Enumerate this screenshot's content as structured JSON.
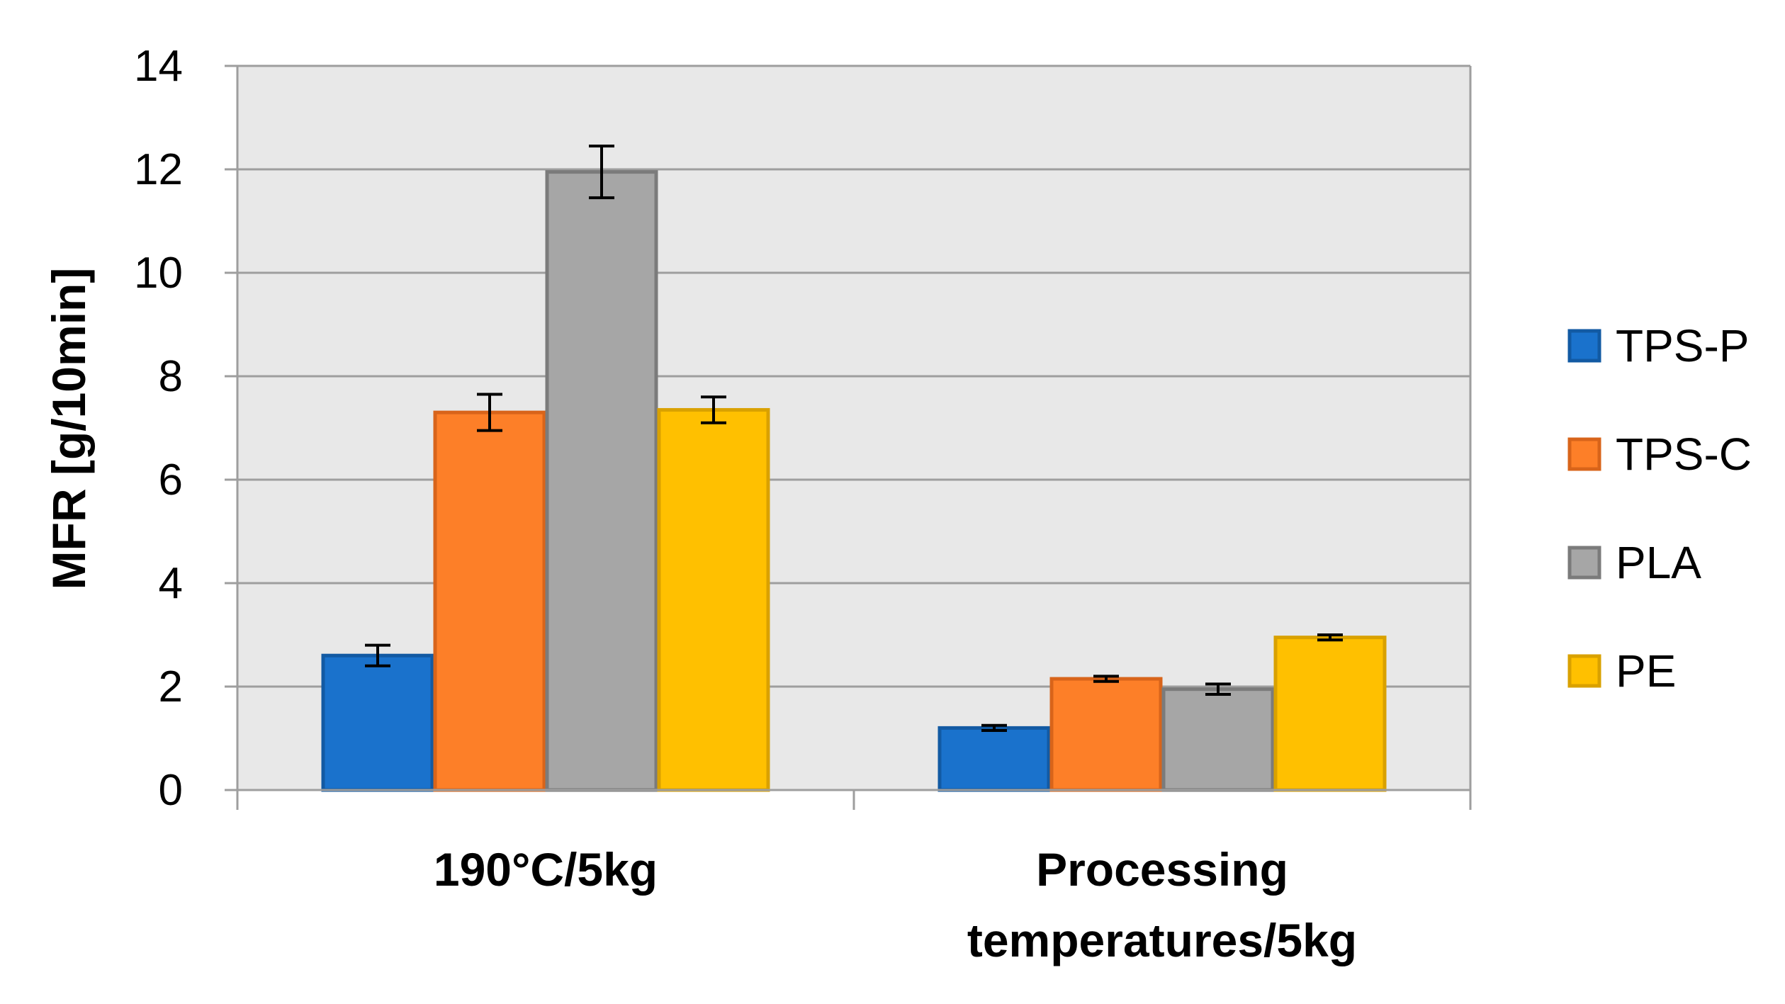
{
  "chart_data": {
    "type": "bar",
    "categories": [
      "190°C/5kg",
      "Processing temperatures/5kg"
    ],
    "category_lines": [
      [
        "190°C/5kg"
      ],
      [
        "Processing",
        "temperatures/5kg"
      ]
    ],
    "series": [
      {
        "name": "TPS-P",
        "values": [
          2.6,
          1.2
        ],
        "errors": [
          0.2,
          0.05
        ],
        "color": "#1a72cc",
        "stroke": "#125aa3"
      },
      {
        "name": "TPS-C",
        "values": [
          7.3,
          2.15
        ],
        "errors": [
          0.35,
          0.05
        ],
        "color": "#fd7f28",
        "stroke": "#d8641a"
      },
      {
        "name": "PLA",
        "values": [
          11.95,
          1.95
        ],
        "errors": [
          0.5,
          0.1
        ],
        "color": "#a6a6a6",
        "stroke": "#7b7b7b"
      },
      {
        "name": "PE",
        "values": [
          7.35,
          2.95
        ],
        "errors": [
          0.25,
          0.05
        ],
        "color": "#ffc000",
        "stroke": "#d9a100"
      }
    ],
    "ylabel": "MFR [g/10min]",
    "xlabel": "",
    "ylim": [
      0,
      14
    ],
    "yticks": [
      0,
      2,
      4,
      6,
      8,
      10,
      12,
      14
    ],
    "grid": true,
    "legend_position": "right",
    "plot_background": "#e8e8e8",
    "gridline_color": "#9e9e9e",
    "errorbar_color": "#000000"
  }
}
